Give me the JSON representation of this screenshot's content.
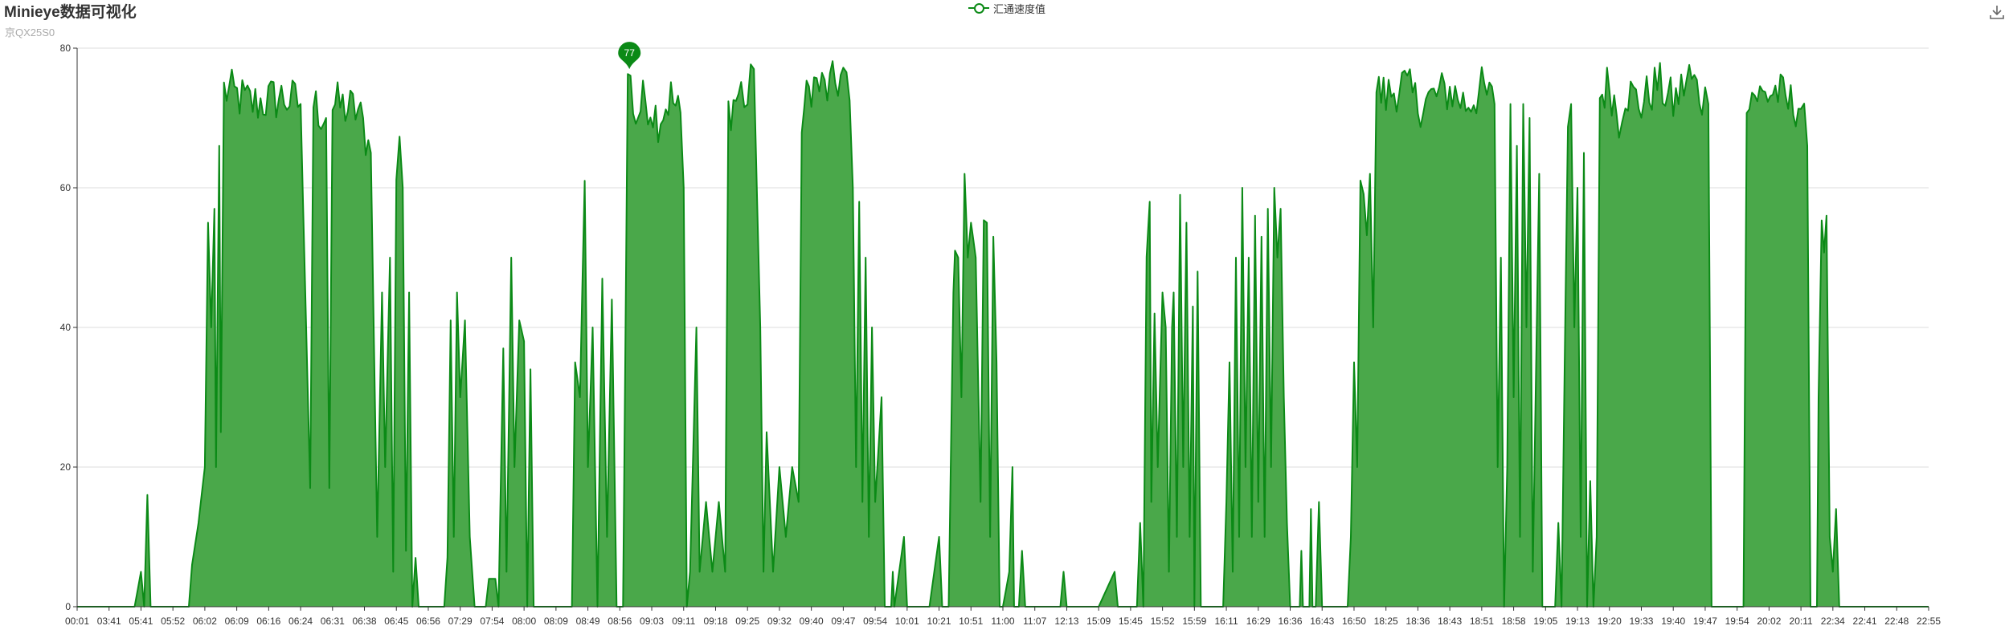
{
  "title": "Minieye数据可视化",
  "subtitle": "京QX25S0",
  "legend": {
    "label": "汇通速度值"
  },
  "toolbar": {
    "download_icon": "download-icon"
  },
  "colors": {
    "line": "#0b8a16",
    "area": "#4aa84a",
    "grid": "#dddddd",
    "axis": "#333333",
    "pin": "#0b8a16"
  },
  "chart_data": {
    "type": "area",
    "series_name": "汇通速度值",
    "ylim": [
      0,
      80
    ],
    "y_ticks": [
      "0",
      "20",
      "40",
      "60",
      "80"
    ],
    "x_ticks": [
      "00:01",
      "03:41",
      "05:41",
      "05:52",
      "06:02",
      "06:09",
      "06:16",
      "06:24",
      "06:31",
      "06:38",
      "06:45",
      "06:56",
      "07:29",
      "07:54",
      "08:00",
      "08:09",
      "08:49",
      "08:56",
      "09:03",
      "09:11",
      "09:18",
      "09:25",
      "09:32",
      "09:40",
      "09:47",
      "09:54",
      "10:01",
      "10:21",
      "10:51",
      "11:00",
      "11:07",
      "12:13",
      "15:09",
      "15:45",
      "15:52",
      "15:59",
      "16:11",
      "16:29",
      "16:36",
      "16:43",
      "16:50",
      "18:25",
      "18:36",
      "18:43",
      "18:51",
      "18:58",
      "19:05",
      "19:13",
      "19:20",
      "19:33",
      "19:40",
      "19:47",
      "19:54",
      "20:02",
      "20:11",
      "22:34",
      "22:41",
      "22:48",
      "22:55"
    ],
    "max_marker": {
      "value": "77",
      "x_index": 17.3
    },
    "profile": [
      [
        0,
        0
      ],
      [
        1.8,
        0
      ],
      [
        2.0,
        5
      ],
      [
        2.1,
        0
      ],
      [
        2.2,
        16
      ],
      [
        2.3,
        0
      ],
      [
        3.0,
        0
      ],
      [
        3.5,
        0
      ],
      [
        3.6,
        6
      ],
      [
        3.8,
        12
      ],
      [
        4.0,
        20
      ],
      [
        4.1,
        55
      ],
      [
        4.2,
        40
      ],
      [
        4.3,
        57
      ],
      [
        4.35,
        20
      ],
      [
        4.45,
        66
      ],
      [
        4.5,
        25
      ],
      [
        4.6,
        74
      ],
      [
        5.5,
        72
      ],
      [
        6.4,
        73
      ],
      [
        7.0,
        72
      ],
      [
        7.3,
        17
      ],
      [
        7.4,
        72
      ],
      [
        7.8,
        70
      ],
      [
        7.9,
        17
      ],
      [
        8.0,
        72
      ],
      [
        8.8,
        71
      ],
      [
        9.2,
        65
      ],
      [
        9.4,
        10
      ],
      [
        9.55,
        45
      ],
      [
        9.65,
        20
      ],
      [
        9.8,
        50
      ],
      [
        9.9,
        5
      ],
      [
        10.0,
        64
      ],
      [
        10.1,
        66
      ],
      [
        10.2,
        60
      ],
      [
        10.3,
        8
      ],
      [
        10.4,
        45
      ],
      [
        10.5,
        0
      ],
      [
        10.6,
        7
      ],
      [
        10.7,
        0
      ],
      [
        11.5,
        0
      ],
      [
        11.6,
        7
      ],
      [
        11.7,
        41
      ],
      [
        11.8,
        10
      ],
      [
        11.9,
        45
      ],
      [
        12.0,
        30
      ],
      [
        12.15,
        41
      ],
      [
        12.3,
        10
      ],
      [
        12.45,
        0
      ],
      [
        12.8,
        0
      ],
      [
        12.9,
        4
      ],
      [
        13.1,
        4
      ],
      [
        13.2,
        0
      ],
      [
        13.35,
        37
      ],
      [
        13.45,
        5
      ],
      [
        13.6,
        50
      ],
      [
        13.7,
        20
      ],
      [
        13.85,
        41
      ],
      [
        14.0,
        38
      ],
      [
        14.1,
        0
      ],
      [
        14.2,
        34
      ],
      [
        14.3,
        0
      ],
      [
        15.5,
        0
      ],
      [
        15.6,
        35
      ],
      [
        15.75,
        30
      ],
      [
        15.9,
        61
      ],
      [
        16.0,
        20
      ],
      [
        16.15,
        40
      ],
      [
        16.3,
        0
      ],
      [
        16.45,
        47
      ],
      [
        16.6,
        10
      ],
      [
        16.75,
        44
      ],
      [
        16.9,
        0
      ],
      [
        17.1,
        0
      ],
      [
        17.25,
        77
      ],
      [
        17.5,
        70
      ],
      [
        17.8,
        73
      ],
      [
        18.2,
        70
      ],
      [
        18.6,
        73
      ],
      [
        18.9,
        70
      ],
      [
        19.0,
        60
      ],
      [
        19.1,
        0
      ],
      [
        19.2,
        5
      ],
      [
        19.4,
        40
      ],
      [
        19.5,
        5
      ],
      [
        19.7,
        15
      ],
      [
        19.9,
        5
      ],
      [
        20.1,
        15
      ],
      [
        20.3,
        5
      ],
      [
        20.4,
        71
      ],
      [
        20.8,
        74
      ],
      [
        21.0,
        72
      ],
      [
        21.2,
        77
      ],
      [
        21.4,
        40
      ],
      [
        21.5,
        5
      ],
      [
        21.6,
        25
      ],
      [
        21.8,
        5
      ],
      [
        22.0,
        20
      ],
      [
        22.2,
        10
      ],
      [
        22.4,
        20
      ],
      [
        22.6,
        15
      ],
      [
        22.7,
        70
      ],
      [
        23.0,
        75
      ],
      [
        23.5,
        74
      ],
      [
        24.0,
        76
      ],
      [
        24.2,
        72
      ],
      [
        24.3,
        60
      ],
      [
        24.4,
        20
      ],
      [
        24.5,
        58
      ],
      [
        24.6,
        15
      ],
      [
        24.7,
        50
      ],
      [
        24.8,
        10
      ],
      [
        24.9,
        40
      ],
      [
        25.0,
        15
      ],
      [
        25.2,
        30
      ],
      [
        25.3,
        0
      ],
      [
        25.5,
        0
      ],
      [
        25.55,
        5
      ],
      [
        25.6,
        0
      ],
      [
        25.9,
        10
      ],
      [
        26.0,
        0
      ],
      [
        26.7,
        0
      ],
      [
        27.0,
        10
      ],
      [
        27.1,
        0
      ],
      [
        27.3,
        0
      ],
      [
        27.45,
        45
      ],
      [
        27.5,
        51
      ],
      [
        27.6,
        50
      ],
      [
        27.7,
        30
      ],
      [
        27.8,
        62
      ],
      [
        27.9,
        50
      ],
      [
        28.0,
        55
      ],
      [
        28.15,
        50
      ],
      [
        28.3,
        15
      ],
      [
        28.4,
        54
      ],
      [
        28.5,
        55
      ],
      [
        28.6,
        10
      ],
      [
        28.7,
        53
      ],
      [
        28.8,
        35
      ],
      [
        28.9,
        0
      ],
      [
        29.0,
        0
      ],
      [
        29.2,
        5
      ],
      [
        29.3,
        20
      ],
      [
        29.35,
        0
      ],
      [
        29.5,
        0
      ],
      [
        29.6,
        8
      ],
      [
        29.7,
        0
      ],
      [
        30.8,
        0
      ],
      [
        30.9,
        5
      ],
      [
        31.0,
        0
      ],
      [
        32.0,
        0
      ],
      [
        32.5,
        5
      ],
      [
        32.6,
        0
      ],
      [
        33.2,
        0
      ],
      [
        33.3,
        12
      ],
      [
        33.4,
        0
      ],
      [
        33.5,
        53
      ],
      [
        33.6,
        58
      ],
      [
        33.65,
        15
      ],
      [
        33.75,
        42
      ],
      [
        33.85,
        20
      ],
      [
        34.0,
        45
      ],
      [
        34.1,
        40
      ],
      [
        34.2,
        5
      ],
      [
        34.3,
        40
      ],
      [
        34.35,
        45
      ],
      [
        34.45,
        10
      ],
      [
        34.55,
        59
      ],
      [
        34.65,
        20
      ],
      [
        34.75,
        55
      ],
      [
        34.85,
        10
      ],
      [
        34.95,
        43
      ],
      [
        35.0,
        0
      ],
      [
        35.1,
        48
      ],
      [
        35.2,
        0
      ],
      [
        35.3,
        0
      ],
      [
        35.9,
        0
      ],
      [
        36.0,
        15
      ],
      [
        36.1,
        35
      ],
      [
        36.2,
        5
      ],
      [
        36.3,
        50
      ],
      [
        36.4,
        10
      ],
      [
        36.5,
        60
      ],
      [
        36.6,
        20
      ],
      [
        36.7,
        50
      ],
      [
        36.8,
        10
      ],
      [
        36.9,
        56
      ],
      [
        37.0,
        15
      ],
      [
        37.1,
        53
      ],
      [
        37.2,
        10
      ],
      [
        37.3,
        57
      ],
      [
        37.4,
        20
      ],
      [
        37.5,
        60
      ],
      [
        37.6,
        50
      ],
      [
        37.7,
        57
      ],
      [
        37.8,
        30
      ],
      [
        37.9,
        12
      ],
      [
        38.0,
        0
      ],
      [
        38.3,
        0
      ],
      [
        38.35,
        8
      ],
      [
        38.4,
        0
      ],
      [
        38.6,
        0
      ],
      [
        38.65,
        14
      ],
      [
        38.7,
        0
      ],
      [
        38.8,
        0
      ],
      [
        38.9,
        15
      ],
      [
        39.0,
        0
      ],
      [
        39.8,
        0
      ],
      [
        39.9,
        10
      ],
      [
        40.0,
        35
      ],
      [
        40.1,
        20
      ],
      [
        40.2,
        58
      ],
      [
        40.3,
        62
      ],
      [
        40.4,
        55
      ],
      [
        40.5,
        62
      ],
      [
        40.6,
        40
      ],
      [
        40.7,
        74
      ],
      [
        41.0,
        73
      ],
      [
        41.5,
        75
      ],
      [
        42.0,
        72
      ],
      [
        42.5,
        73
      ],
      [
        43.0,
        74
      ],
      [
        43.5,
        72
      ],
      [
        44.0,
        74
      ],
      [
        44.4,
        72
      ],
      [
        44.5,
        20
      ],
      [
        44.6,
        50
      ],
      [
        44.7,
        0
      ],
      [
        44.8,
        20
      ],
      [
        44.9,
        72
      ],
      [
        45.0,
        30
      ],
      [
        45.1,
        66
      ],
      [
        45.2,
        10
      ],
      [
        45.3,
        72
      ],
      [
        45.4,
        40
      ],
      [
        45.5,
        70
      ],
      [
        45.6,
        5
      ],
      [
        45.8,
        62
      ],
      [
        45.9,
        0
      ],
      [
        46.3,
        0
      ],
      [
        46.4,
        12
      ],
      [
        46.5,
        0
      ],
      [
        46.6,
        35
      ],
      [
        46.7,
        70
      ],
      [
        46.8,
        72
      ],
      [
        46.9,
        40
      ],
      [
        47.0,
        60
      ],
      [
        47.1,
        10
      ],
      [
        47.2,
        65
      ],
      [
        47.3,
        0
      ],
      [
        47.4,
        18
      ],
      [
        47.5,
        0
      ],
      [
        47.6,
        10
      ],
      [
        47.7,
        73
      ],
      [
        48.0,
        75
      ],
      [
        48.3,
        70
      ],
      [
        48.5,
        74
      ],
      [
        49.0,
        72
      ],
      [
        49.5,
        75
      ],
      [
        50.0,
        72
      ],
      [
        50.5,
        76
      ],
      [
        50.9,
        73
      ],
      [
        51.1,
        72
      ],
      [
        51.2,
        0
      ],
      [
        52.2,
        0
      ],
      [
        52.3,
        74
      ],
      [
        52.8,
        73
      ],
      [
        53.2,
        74
      ],
      [
        53.6,
        72
      ],
      [
        54.0,
        72
      ],
      [
        54.2,
        66
      ],
      [
        54.3,
        0
      ],
      [
        54.5,
        0
      ],
      [
        54.55,
        30
      ],
      [
        54.65,
        52
      ],
      [
        54.8,
        56
      ],
      [
        54.9,
        10
      ],
      [
        55.0,
        5
      ],
      [
        55.1,
        14
      ],
      [
        55.2,
        0
      ],
      [
        58.0,
        0
      ]
    ]
  }
}
